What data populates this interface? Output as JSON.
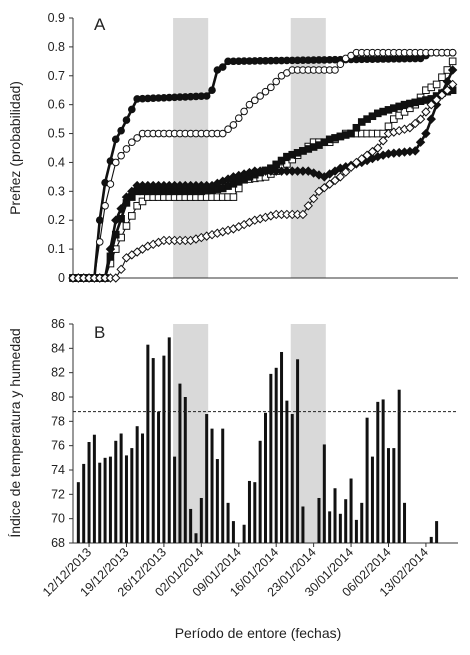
{
  "chart_data": [
    {
      "type": "line",
      "panel_label": "A",
      "ylabel": "Preñez (probabilidad)",
      "ylim": [
        0,
        0.9
      ],
      "yticks": [
        "0",
        "0.1",
        "0.2",
        "0.3",
        "0.4",
        "0.5",
        "0.6",
        "0.7",
        "0.8",
        "0.9"
      ],
      "x_start": "09/12/2013",
      "x_end": "18/02/2014",
      "shaded_periods": [
        [
          "28/12/2013",
          "03/01/2014"
        ],
        [
          "19/01/2014",
          "25/01/2014"
        ]
      ],
      "series": [
        {
          "marker": "filled-circle",
          "line": "thick",
          "points": [
            [
              "09/12/2013",
              0
            ],
            [
              "13/12/2013",
              0
            ],
            [
              "14/12/2013",
              0.2
            ],
            [
              "15/12/2013",
              0.33
            ],
            [
              "17/12/2013",
              0.48
            ],
            [
              "18/12/2013",
              0.51
            ],
            [
              "21/12/2013",
              0.62
            ],
            [
              "03/01/2014",
              0.63
            ],
            [
              "04/01/2014",
              0.65
            ],
            [
              "05/01/2014",
              0.72
            ],
            [
              "06/01/2014",
              0.73
            ],
            [
              "07/01/2014",
              0.75
            ],
            [
              "12/02/2014",
              0.76
            ],
            [
              "14/02/2014",
              0.78
            ],
            [
              "18/02/2014",
              0.78
            ]
          ]
        },
        {
          "marker": "open-circle",
          "line": "thin",
          "points": [
            [
              "09/12/2013",
              0
            ],
            [
              "13/12/2013",
              0
            ],
            [
              "15/12/2013",
              0.25
            ],
            [
              "17/12/2013",
              0.4
            ],
            [
              "20/12/2013",
              0.47
            ],
            [
              "22/12/2013",
              0.5
            ],
            [
              "06/01/2014",
              0.5
            ],
            [
              "08/01/2014",
              0.53
            ],
            [
              "11/01/2014",
              0.6
            ],
            [
              "13/01/2014",
              0.63
            ],
            [
              "15/01/2014",
              0.66
            ],
            [
              "17/01/2014",
              0.7
            ],
            [
              "19/01/2014",
              0.72
            ],
            [
              "27/01/2014",
              0.72
            ],
            [
              "28/01/2014",
              0.74
            ],
            [
              "29/01/2014",
              0.76
            ],
            [
              "31/01/2014",
              0.78
            ],
            [
              "18/02/2014",
              0.78
            ]
          ]
        },
        {
          "marker": "open-square",
          "line": "thin",
          "points": [
            [
              "09/12/2013",
              0
            ],
            [
              "15/12/2013",
              0
            ],
            [
              "17/12/2013",
              0.1
            ],
            [
              "19/12/2013",
              0.18
            ],
            [
              "21/12/2013",
              0.25
            ],
            [
              "23/12/2013",
              0.28
            ],
            [
              "08/01/2014",
              0.28
            ],
            [
              "10/01/2014",
              0.34
            ],
            [
              "14/01/2014",
              0.35
            ],
            [
              "17/01/2014",
              0.38
            ],
            [
              "19/01/2014",
              0.41
            ],
            [
              "21/01/2014",
              0.44
            ],
            [
              "23/01/2014",
              0.47
            ],
            [
              "26/01/2014",
              0.47
            ],
            [
              "29/01/2014",
              0.5
            ],
            [
              "05/02/2014",
              0.5
            ],
            [
              "07/02/2014",
              0.55
            ],
            [
              "11/02/2014",
              0.6
            ],
            [
              "13/02/2014",
              0.65
            ],
            [
              "15/02/2014",
              0.67
            ],
            [
              "17/02/2014",
              0.72
            ],
            [
              "18/02/2014",
              0.75
            ]
          ]
        },
        {
          "marker": "filled-square",
          "line": "thick",
          "points": [
            [
              "09/12/2013",
              0
            ],
            [
              "15/12/2013",
              0
            ],
            [
              "17/12/2013",
              0.15
            ],
            [
              "19/12/2013",
              0.26
            ],
            [
              "21/12/2013",
              0.3
            ],
            [
              "02/01/2014",
              0.3
            ],
            [
              "06/01/2014",
              0.31
            ],
            [
              "11/01/2014",
              0.35
            ],
            [
              "15/01/2014",
              0.38
            ],
            [
              "18/01/2014",
              0.42
            ],
            [
              "24/01/2014",
              0.46
            ],
            [
              "26/01/2014",
              0.48
            ],
            [
              "30/01/2014",
              0.5
            ],
            [
              "01/02/2014",
              0.54
            ],
            [
              "04/02/2014",
              0.57
            ],
            [
              "09/02/2014",
              0.6
            ],
            [
              "14/02/2014",
              0.62
            ],
            [
              "16/02/2014",
              0.64
            ],
            [
              "18/02/2014",
              0.65
            ]
          ]
        },
        {
          "marker": "filled-diamond",
          "line": "thick",
          "points": [
            [
              "09/12/2013",
              0
            ],
            [
              "15/12/2013",
              0
            ],
            [
              "17/12/2013",
              0.2
            ],
            [
              "19/12/2013",
              0.28
            ],
            [
              "21/12/2013",
              0.32
            ],
            [
              "04/01/2014",
              0.32
            ],
            [
              "08/01/2014",
              0.35
            ],
            [
              "12/01/2014",
              0.37
            ],
            [
              "22/01/2014",
              0.37
            ],
            [
              "25/01/2014",
              0.35
            ],
            [
              "28/01/2014",
              0.38
            ],
            [
              "01/02/2014",
              0.4
            ],
            [
              "04/02/2014",
              0.42
            ],
            [
              "06/02/2014",
              0.43
            ],
            [
              "11/02/2014",
              0.44
            ],
            [
              "13/02/2014",
              0.5
            ],
            [
              "15/02/2014",
              0.6
            ],
            [
              "17/02/2014",
              0.68
            ],
            [
              "18/02/2014",
              0.72
            ]
          ]
        },
        {
          "marker": "open-diamond",
          "line": "thin",
          "points": [
            [
              "09/12/2013",
              0
            ],
            [
              "17/12/2013",
              0
            ],
            [
              "18/12/2013",
              0.03
            ],
            [
              "19/12/2013",
              0.07
            ],
            [
              "21/12/2013",
              0.09
            ],
            [
              "23/12/2013",
              0.11
            ],
            [
              "26/12/2013",
              0.13
            ],
            [
              "31/12/2013",
              0.13
            ],
            [
              "02/01/2014",
              0.14
            ],
            [
              "08/01/2014",
              0.17
            ],
            [
              "12/01/2014",
              0.2
            ],
            [
              "16/01/2014",
              0.22
            ],
            [
              "21/01/2014",
              0.22
            ],
            [
              "22/01/2014",
              0.25
            ],
            [
              "24/01/2014",
              0.3
            ],
            [
              "28/01/2014",
              0.35
            ],
            [
              "31/01/2014",
              0.4
            ],
            [
              "04/02/2014",
              0.45
            ],
            [
              "06/02/2014",
              0.5
            ],
            [
              "08/02/2014",
              0.51
            ],
            [
              "10/02/2014",
              0.52
            ],
            [
              "12/02/2014",
              0.55
            ],
            [
              "14/02/2014",
              0.6
            ],
            [
              "17/02/2014",
              0.65
            ],
            [
              "18/02/2014",
              0.67
            ]
          ]
        }
      ]
    },
    {
      "type": "bar",
      "panel_label": "B",
      "ylabel": "Índice de temperatura y humedad",
      "xlabel": "Período de entore (fechas)",
      "ylim": [
        68,
        86
      ],
      "yticks": [
        "68",
        "70",
        "72",
        "74",
        "76",
        "78",
        "80",
        "82",
        "84",
        "86"
      ],
      "xticks": [
        "12/12/2013",
        "19/12/2013",
        "26/12/2013",
        "02/01/2014",
        "09/01/2014",
        "16/01/2014",
        "23/01/2014",
        "30/01/2014",
        "06/02/2014",
        "13/02/2014"
      ],
      "threshold": 78.8,
      "shaded_periods": [
        [
          "28/12/2013",
          "03/01/2014"
        ],
        [
          "19/01/2014",
          "25/01/2014"
        ]
      ],
      "x": [
        "10/12/2013",
        "11/12/2013",
        "12/12/2013",
        "13/12/2013",
        "14/12/2013",
        "15/12/2013",
        "16/12/2013",
        "17/12/2013",
        "18/12/2013",
        "19/12/2013",
        "20/12/2013",
        "21/12/2013",
        "22/12/2013",
        "23/12/2013",
        "24/12/2013",
        "25/12/2013",
        "26/12/2013",
        "27/12/2013",
        "28/12/2013",
        "29/12/2013",
        "30/12/2013",
        "31/12/2013",
        "01/01/2014",
        "02/01/2014",
        "03/01/2014",
        "04/01/2014",
        "05/01/2014",
        "06/01/2014",
        "07/01/2014",
        "08/01/2014",
        "09/01/2014",
        "10/01/2014",
        "11/01/2014",
        "12/01/2014",
        "13/01/2014",
        "14/01/2014",
        "15/01/2014",
        "16/01/2014",
        "17/01/2014",
        "18/01/2014",
        "19/01/2014",
        "20/01/2014",
        "21/01/2014",
        "22/01/2014",
        "23/01/2014",
        "24/01/2014",
        "25/01/2014",
        "26/01/2014",
        "27/01/2014",
        "28/01/2014",
        "29/01/2014",
        "30/01/2014",
        "31/01/2014",
        "01/02/2014",
        "02/02/2014",
        "03/02/2014",
        "04/02/2014",
        "05/02/2014",
        "06/02/2014",
        "07/02/2014",
        "08/02/2014",
        "09/02/2014",
        "10/02/2014",
        "11/02/2014",
        "12/02/2014",
        "13/02/2014",
        "14/02/2014",
        "15/02/2014",
        "16/02/2014",
        "17/02/2014",
        "18/02/2014"
      ],
      "values": [
        73.0,
        74.5,
        76.3,
        76.9,
        74.6,
        75.0,
        75.1,
        76.4,
        77.0,
        75.2,
        75.8,
        77.6,
        77.0,
        84.3,
        83.2,
        78.8,
        83.4,
        84.9,
        75.1,
        81.1,
        80.0,
        70.8,
        68.8,
        71.7,
        78.6,
        77.4,
        74.9,
        77.4,
        71.3,
        69.8,
        null,
        69.5,
        73.1,
        73.0,
        76.4,
        78.7,
        81.9,
        82.4,
        83.7,
        79.7,
        78.6,
        83.1,
        71.0,
        null,
        null,
        71.7,
        76.1,
        70.6,
        72.5,
        70.4,
        71.6,
        73.3,
        69.9,
        71.3,
        78.3,
        75.1,
        79.6,
        79.8,
        75.8,
        75.8,
        80.6,
        71.3,
        null,
        null,
        null,
        null,
        68.5,
        69.8,
        null,
        null,
        null
      ]
    }
  ]
}
